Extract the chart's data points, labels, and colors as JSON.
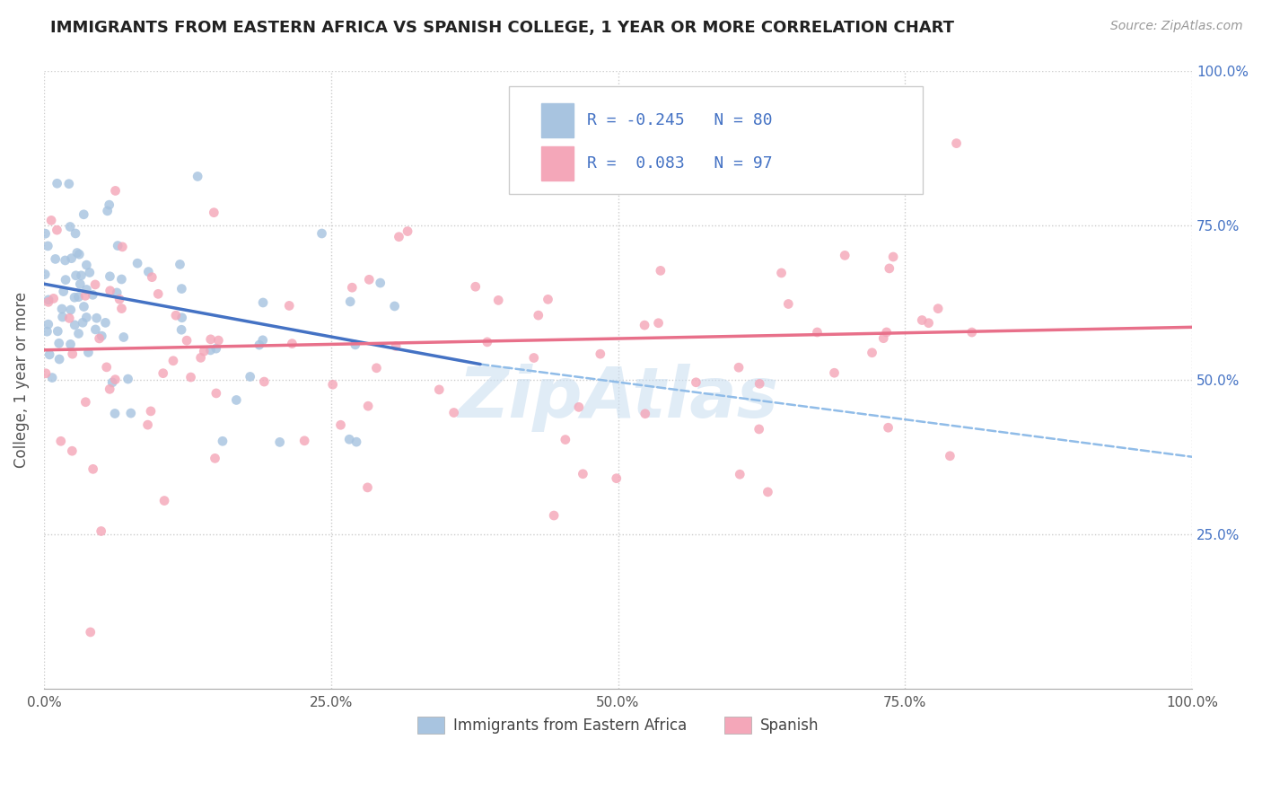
{
  "title": "IMMIGRANTS FROM EASTERN AFRICA VS SPANISH COLLEGE, 1 YEAR OR MORE CORRELATION CHART",
  "source": "Source: ZipAtlas.com",
  "ylabel": "College, 1 year or more",
  "legend_labels": [
    "Immigrants from Eastern Africa",
    "Spanish"
  ],
  "R_eastern": -0.245,
  "N_eastern": 80,
  "R_spanish": 0.083,
  "N_spanish": 97,
  "xlim": [
    0.0,
    1.0
  ],
  "ylim": [
    0.0,
    1.0
  ],
  "xtick_labels": [
    "0.0%",
    "25.0%",
    "50.0%",
    "75.0%",
    "100.0%"
  ],
  "xtick_vals": [
    0.0,
    0.25,
    0.5,
    0.75,
    1.0
  ],
  "ytick_labels": [
    "25.0%",
    "50.0%",
    "75.0%",
    "100.0%"
  ],
  "ytick_vals": [
    0.25,
    0.5,
    0.75,
    1.0
  ],
  "color_eastern": "#a8c4e0",
  "color_spanish": "#f4a7b9",
  "line_eastern_color": "#4472c4",
  "line_spanish_color": "#e8708a",
  "line_dashed_color": "#90bce8",
  "background_color": "#ffffff",
  "grid_color": "#cccccc",
  "title_color": "#222222",
  "source_color": "#999999",
  "ytick_color": "#4472c4",
  "xtick_color": "#555555",
  "watermark_text": "ZipAtlas",
  "watermark_color": "#c8ddf0",
  "line_eastern_x0": 0.0,
  "line_eastern_y0": 0.655,
  "line_eastern_x1": 0.38,
  "line_eastern_y1": 0.525,
  "line_spanish_x0": 0.0,
  "line_spanish_y0": 0.548,
  "line_spanish_x1": 1.0,
  "line_spanish_y1": 0.585,
  "line_dashed_x0": 0.38,
  "line_dashed_y0": 0.525,
  "line_dashed_x1": 1.0,
  "line_dashed_y1": 0.375
}
